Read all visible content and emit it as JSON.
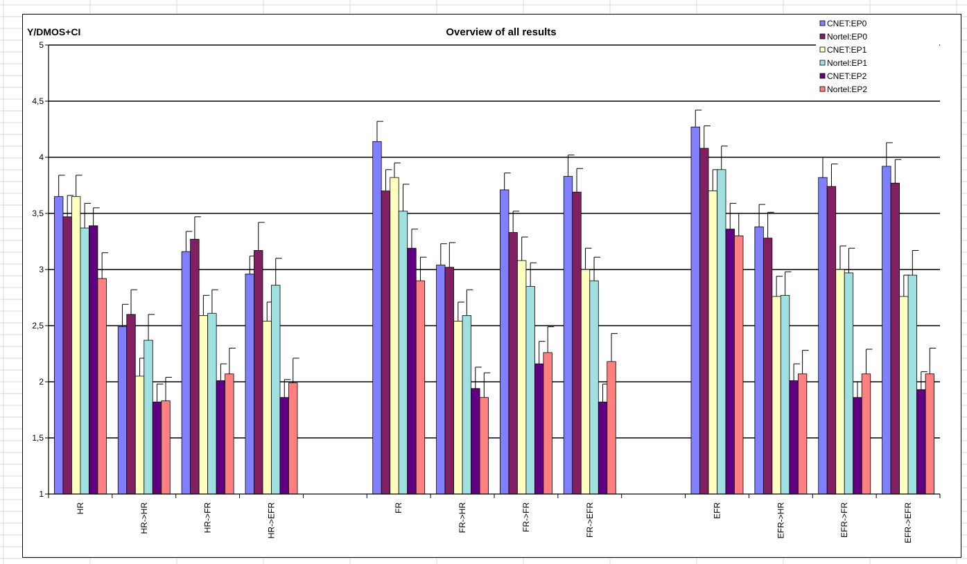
{
  "chart_data": {
    "type": "bar",
    "title": "Overview of all results",
    "ylabel": "Y/DMOS+CI",
    "xlabel": "",
    "ylim": [
      1,
      5
    ],
    "yticks": [
      "1",
      "1,5",
      "2",
      "2,5",
      "3",
      "3,5",
      "4",
      "4,5",
      "5"
    ],
    "grid": true,
    "legend_position": "top-right",
    "categories": [
      "HR",
      "HR->HR",
      "HR->FR",
      "HR->EFR",
      "",
      "FR",
      "FR->HR",
      "FR->FR",
      "FR->EFR",
      "",
      "EFR",
      "EFR->HR",
      "EFR->FR",
      "EFR->EFR"
    ],
    "series": [
      {
        "name": "CNET:EP0",
        "color": "#8080ff",
        "values": [
          3.65,
          2.49,
          3.16,
          2.96,
          null,
          4.14,
          3.04,
          3.71,
          3.83,
          null,
          4.27,
          3.38,
          3.82,
          3.92
        ],
        "ci": [
          3.84,
          2.69,
          3.34,
          3.12,
          null,
          4.32,
          3.23,
          3.86,
          4.02,
          null,
          4.42,
          3.58,
          4.0,
          4.13
        ]
      },
      {
        "name": "Nortel:EP0",
        "color": "#802060",
        "values": [
          3.47,
          2.6,
          3.27,
          3.17,
          null,
          3.7,
          3.02,
          3.33,
          3.69,
          null,
          4.08,
          3.28,
          3.74,
          3.77
        ],
        "ci": [
          3.66,
          2.82,
          3.47,
          3.42,
          null,
          3.89,
          3.24,
          3.52,
          3.9,
          null,
          4.28,
          3.51,
          3.94,
          3.98
        ]
      },
      {
        "name": "CNET:EP1",
        "color": "#ffffc0",
        "values": [
          3.65,
          2.05,
          2.59,
          2.54,
          null,
          3.82,
          2.54,
          3.08,
          3.0,
          null,
          3.7,
          2.76,
          3.0,
          2.76
        ],
        "ci": [
          3.84,
          2.21,
          2.77,
          2.71,
          null,
          3.95,
          2.71,
          3.29,
          3.19,
          null,
          3.89,
          2.94,
          3.21,
          2.95
        ]
      },
      {
        "name": "Nortel:EP1",
        "color": "#a0e0e0",
        "values": [
          3.37,
          2.37,
          2.61,
          2.86,
          null,
          3.52,
          2.59,
          2.85,
          2.9,
          null,
          3.89,
          2.77,
          2.97,
          2.95
        ],
        "ci": [
          3.59,
          2.6,
          2.82,
          3.1,
          null,
          3.76,
          2.82,
          3.06,
          3.11,
          null,
          4.1,
          2.98,
          3.19,
          3.17
        ]
      },
      {
        "name": "CNET:EP2",
        "color": "#600080",
        "values": [
          3.39,
          1.82,
          2.01,
          1.86,
          null,
          3.19,
          1.94,
          2.16,
          1.82,
          null,
          3.36,
          2.01,
          1.86,
          1.93
        ],
        "ci": [
          3.55,
          1.98,
          2.16,
          2.02,
          null,
          3.36,
          2.13,
          2.36,
          1.98,
          null,
          3.59,
          2.16,
          2.0,
          2.09
        ]
      },
      {
        "name": "Nortel:EP2",
        "color": "#ff8080",
        "values": [
          2.92,
          1.83,
          2.07,
          1.99,
          null,
          2.9,
          1.86,
          2.26,
          2.18,
          null,
          3.3,
          2.07,
          2.07,
          2.07
        ],
        "ci": [
          3.15,
          2.04,
          2.3,
          2.21,
          null,
          3.11,
          2.08,
          2.49,
          2.43,
          null,
          3.5,
          2.28,
          2.29,
          2.3
        ]
      }
    ]
  }
}
